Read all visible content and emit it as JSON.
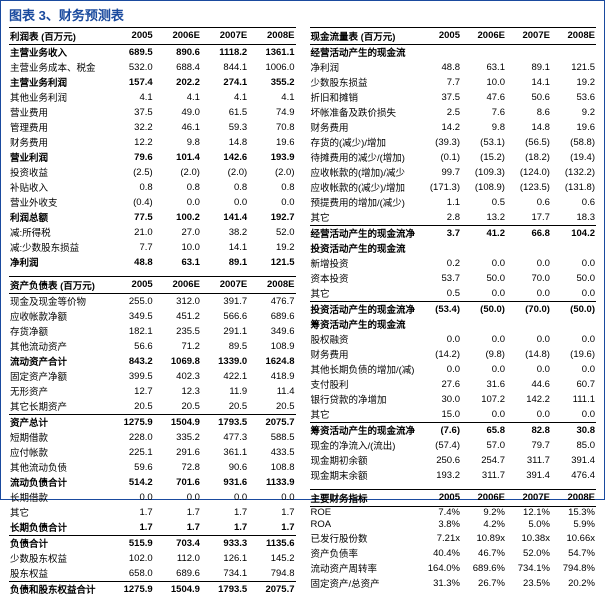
{
  "title": "图表 3、财务预测表",
  "headers": [
    "2005",
    "2006E",
    "2007E",
    "2008E"
  ],
  "left": {
    "income_title": "利润表 (百万元)",
    "income_rows": [
      {
        "label": "主营业务收入",
        "v": [
          "689.5",
          "890.6",
          "1118.2",
          "1361.1"
        ],
        "bold": true
      },
      {
        "label": "主营业务成本、税金",
        "v": [
          "532.0",
          "688.4",
          "844.1",
          "1006.0"
        ]
      },
      {
        "label": "主营业务利润",
        "v": [
          "157.4",
          "202.2",
          "274.1",
          "355.2"
        ],
        "bold": true
      },
      {
        "label": "其他业务利润",
        "v": [
          "4.1",
          "4.1",
          "4.1",
          "4.1"
        ]
      },
      {
        "label": "营业费用",
        "v": [
          "37.5",
          "49.0",
          "61.5",
          "74.9"
        ]
      },
      {
        "label": "管理费用",
        "v": [
          "32.2",
          "46.1",
          "59.3",
          "70.8"
        ]
      },
      {
        "label": "财务费用",
        "v": [
          "12.2",
          "9.8",
          "14.8",
          "19.6"
        ]
      },
      {
        "label": "营业利润",
        "v": [
          "79.6",
          "101.4",
          "142.6",
          "193.9"
        ],
        "bold": true
      },
      {
        "label": "投资收益",
        "v": [
          "(2.5)",
          "(2.0)",
          "(2.0)",
          "(2.0)"
        ]
      },
      {
        "label": "补贴收入",
        "v": [
          "0.8",
          "0.8",
          "0.8",
          "0.8"
        ]
      },
      {
        "label": "营业外收支",
        "v": [
          "(0.4)",
          "0.0",
          "0.0",
          "0.0"
        ]
      },
      {
        "label": "利润总额",
        "v": [
          "77.5",
          "100.2",
          "141.4",
          "192.7"
        ],
        "bold": true
      },
      {
        "label": "减:所得税",
        "v": [
          "21.0",
          "27.0",
          "38.2",
          "52.0"
        ]
      },
      {
        "label": "减:少数股东损益",
        "v": [
          "7.7",
          "10.0",
          "14.1",
          "19.2"
        ]
      },
      {
        "label": "净利润",
        "v": [
          "48.8",
          "63.1",
          "89.1",
          "121.5"
        ],
        "bold": true
      }
    ],
    "balance_title": "资产负债表 (百万元)",
    "balance_rows": [
      {
        "label": "现金及现金等价物",
        "v": [
          "255.0",
          "312.0",
          "391.7",
          "476.7"
        ]
      },
      {
        "label": "应收帐款净额",
        "v": [
          "349.5",
          "451.2",
          "566.6",
          "689.6"
        ]
      },
      {
        "label": "存货净额",
        "v": [
          "182.1",
          "235.5",
          "291.1",
          "349.6"
        ]
      },
      {
        "label": "其他流动资产",
        "v": [
          "56.6",
          "71.2",
          "89.5",
          "108.9"
        ]
      },
      {
        "label": "流动资产合计",
        "v": [
          "843.2",
          "1069.8",
          "1339.0",
          "1624.8"
        ],
        "bold": true
      },
      {
        "label": "固定资产净额",
        "v": [
          "399.5",
          "402.3",
          "422.1",
          "418.9"
        ]
      },
      {
        "label": "无形资产",
        "v": [
          "12.7",
          "12.3",
          "11.9",
          "11.4"
        ]
      },
      {
        "label": "其它长期资产",
        "v": [
          "20.5",
          "20.5",
          "20.5",
          "20.5"
        ]
      },
      {
        "label": "资产总计",
        "v": [
          "1275.9",
          "1504.9",
          "1793.5",
          "2075.7"
        ],
        "bold": true,
        "sep": true
      },
      {
        "label": "短期借款",
        "v": [
          "228.0",
          "335.2",
          "477.3",
          "588.5"
        ]
      },
      {
        "label": "应付帐款",
        "v": [
          "225.1",
          "291.6",
          "361.1",
          "433.5"
        ]
      },
      {
        "label": "其他流动负债",
        "v": [
          "59.6",
          "72.8",
          "90.6",
          "108.8"
        ]
      },
      {
        "label": "流动负债合计",
        "v": [
          "514.2",
          "701.6",
          "931.6",
          "1133.9"
        ],
        "bold": true
      },
      {
        "label": "长期借款",
        "v": [
          "0.0",
          "0.0",
          "0.0",
          "0.0"
        ]
      },
      {
        "label": "其它",
        "v": [
          "1.7",
          "1.7",
          "1.7",
          "1.7"
        ]
      },
      {
        "label": "长期负债合计",
        "v": [
          "1.7",
          "1.7",
          "1.7",
          "1.7"
        ],
        "bold": true
      },
      {
        "label": "负债合计",
        "v": [
          "515.9",
          "703.4",
          "933.3",
          "1135.6"
        ],
        "bold": true,
        "sep": true
      },
      {
        "label": "少数股东权益",
        "v": [
          "102.0",
          "112.0",
          "126.1",
          "145.2"
        ]
      },
      {
        "label": "股东权益",
        "v": [
          "658.0",
          "689.6",
          "734.1",
          "794.8"
        ]
      },
      {
        "label": "负债和股东权益合计",
        "v": [
          "1275.9",
          "1504.9",
          "1793.5",
          "2075.7"
        ],
        "bold": true,
        "sep": true
      }
    ]
  },
  "right": {
    "cf_title": "现金流量表 (百万元)",
    "cf_op_title": "经营活动产生的现金流",
    "cf_op_rows": [
      {
        "label": "净利润",
        "v": [
          "48.8",
          "63.1",
          "89.1",
          "121.5"
        ]
      },
      {
        "label": "少数股东损益",
        "v": [
          "7.7",
          "10.0",
          "14.1",
          "19.2"
        ]
      },
      {
        "label": "折旧和摊销",
        "v": [
          "37.5",
          "47.6",
          "50.6",
          "53.6"
        ]
      },
      {
        "label": "坏帐准备及跌价损失",
        "v": [
          "2.5",
          "7.6",
          "8.6",
          "9.2"
        ]
      },
      {
        "label": "财务费用",
        "v": [
          "14.2",
          "9.8",
          "14.8",
          "19.6"
        ]
      },
      {
        "label": "存货的(减少)/增加",
        "v": [
          "(39.3)",
          "(53.1)",
          "(56.5)",
          "(58.8)"
        ]
      },
      {
        "label": "待摊费用的减少/(增加)",
        "v": [
          "(0.1)",
          "(15.2)",
          "(18.2)",
          "(19.4)"
        ]
      },
      {
        "label": "应收帐款的(增加)/减少",
        "v": [
          "99.7",
          "(109.3)",
          "(124.0)",
          "(132.2)"
        ]
      },
      {
        "label": "应收帐款的(减少)/增加",
        "v": [
          "(171.3)",
          "(108.9)",
          "(123.5)",
          "(131.8)"
        ]
      },
      {
        "label": "预提费用的增加/(减少)",
        "v": [
          "1.1",
          "0.5",
          "0.6",
          "0.6"
        ]
      },
      {
        "label": "其它",
        "v": [
          "2.8",
          "13.2",
          "17.7",
          "18.3"
        ]
      },
      {
        "label": "经营活动产生的现金流净",
        "v": [
          "3.7",
          "41.2",
          "66.8",
          "104.2"
        ],
        "bold": true,
        "sep": true
      }
    ],
    "cf_inv_title": "投资活动产生的现金流",
    "cf_inv_rows": [
      {
        "label": "新增投资",
        "v": [
          "0.2",
          "0.0",
          "0.0",
          "0.0"
        ]
      },
      {
        "label": "资本投资",
        "v": [
          "53.7",
          "50.0",
          "70.0",
          "50.0"
        ]
      },
      {
        "label": "其它",
        "v": [
          "0.5",
          "0.0",
          "0.0",
          "0.0"
        ]
      },
      {
        "label": "投资活动产生的现金流净",
        "v": [
          "(53.4)",
          "(50.0)",
          "(70.0)",
          "(50.0)"
        ],
        "bold": true,
        "sep": true
      }
    ],
    "cf_fin_title": "筹资活动产生的现金流",
    "cf_fin_rows": [
      {
        "label": "股权融资",
        "v": [
          "0.0",
          "0.0",
          "0.0",
          "0.0"
        ]
      },
      {
        "label": "财务费用",
        "v": [
          "(14.2)",
          "(9.8)",
          "(14.8)",
          "(19.6)"
        ]
      },
      {
        "label": "其他长期负债的增加/(减)",
        "v": [
          "0.0",
          "0.0",
          "0.0",
          "0.0"
        ]
      },
      {
        "label": "支付股利",
        "v": [
          "27.6",
          "31.6",
          "44.6",
          "60.7"
        ]
      },
      {
        "label": "银行贷款的净增加",
        "v": [
          "30.0",
          "107.2",
          "142.2",
          "111.1"
        ]
      },
      {
        "label": "其它",
        "v": [
          "15.0",
          "0.0",
          "0.0",
          "0.0"
        ]
      },
      {
        "label": "筹资活动产生的现金流净",
        "v": [
          "(7.6)",
          "65.8",
          "82.8",
          "30.8"
        ],
        "bold": true,
        "sep": true
      },
      {
        "label": "现金的净流入/(流出)",
        "v": [
          "(57.4)",
          "57.0",
          "79.7",
          "85.0"
        ]
      },
      {
        "label": "现金期初余额",
        "v": [
          "250.6",
          "254.7",
          "311.7",
          "391.4"
        ]
      },
      {
        "label": "现金期末余额",
        "v": [
          "193.2",
          "311.7",
          "391.4",
          "476.4"
        ]
      }
    ],
    "metrics_title": "主要财务指标",
    "metrics_rows": [
      {
        "label": "ROE",
        "v": [
          "7.4%",
          "9.2%",
          "12.1%",
          "15.3%"
        ]
      },
      {
        "label": "ROA",
        "v": [
          "3.8%",
          "4.2%",
          "5.0%",
          "5.9%"
        ]
      },
      {
        "label": "已发行股份数",
        "v": [
          "7.21x",
          "10.89x",
          "10.38x",
          "10.66x"
        ]
      },
      {
        "label": "资产负债率",
        "v": [
          "40.4%",
          "46.7%",
          "52.0%",
          "54.7%"
        ]
      },
      {
        "label": "流动资产周转率",
        "v": [
          "164.0%",
          "689.6%",
          "734.1%",
          "794.8%"
        ]
      },
      {
        "label": "固定资产/总资产",
        "v": [
          "31.3%",
          "26.7%",
          "23.5%",
          "20.2%"
        ]
      }
    ]
  }
}
